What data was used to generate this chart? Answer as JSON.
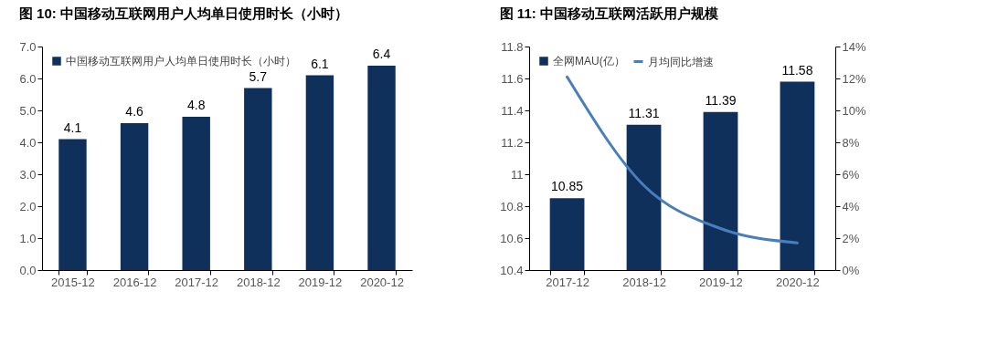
{
  "chart_data": [
    {
      "type": "bar",
      "title": "图 10: 中国移动互联网用户人均单日使用时长（小时）",
      "categories": [
        "2015-12",
        "2016-12",
        "2017-12",
        "2018-12",
        "2019-12",
        "2020-12"
      ],
      "series": [
        {
          "name": "中国移动互联网用户人均单日使用时长（小时）",
          "color": "#10305c",
          "values": [
            4.1,
            4.6,
            4.8,
            5.7,
            6.1,
            6.4
          ],
          "value_labels": [
            "4.1",
            "4.6",
            "4.8",
            "5.7",
            "6.1",
            "6.4"
          ]
        }
      ],
      "ylim": [
        0,
        7
      ],
      "yticks": [
        {
          "value": 0,
          "label": "0.0"
        },
        {
          "value": 1,
          "label": "1.0"
        },
        {
          "value": 2,
          "label": "2.0"
        },
        {
          "value": 3,
          "label": "3.0"
        },
        {
          "value": 4,
          "label": "4.0"
        },
        {
          "value": 5,
          "label": "5.0"
        },
        {
          "value": 6,
          "label": "6.0"
        },
        {
          "value": 7,
          "label": "7.0"
        }
      ],
      "legend": "top left"
    },
    {
      "type": "bar",
      "title": "图 11: 中国移动互联网活跃用户规模",
      "categories": [
        "2017-12",
        "2018-12",
        "2019-12",
        "2020-12"
      ],
      "series": [
        {
          "name": "全网MAU(亿）",
          "color": "#10305c",
          "values": [
            10.85,
            11.31,
            11.39,
            11.58
          ],
          "value_labels": [
            "10.85",
            "11.31",
            "11.39",
            "11.58"
          ]
        },
        {
          "type": "line",
          "axis": "y2",
          "name": "月均同比增速",
          "color": "#4a7ebb",
          "values": [
            12.1,
            5.3,
            2.6,
            1.7
          ]
        }
      ],
      "ylim": [
        10.4,
        11.8
      ],
      "yticks": [
        10.4,
        10.6,
        10.8,
        11,
        11.2,
        11.4,
        11.6,
        11.8
      ],
      "y2lim": [
        0,
        14
      ],
      "y2ticks": [
        {
          "value": 0,
          "label": "0%"
        },
        {
          "value": 2,
          "label": "2%"
        },
        {
          "value": 4,
          "label": "4%"
        },
        {
          "value": 6,
          "label": "6%"
        },
        {
          "value": 8,
          "label": "8%"
        },
        {
          "value": 10,
          "label": "10%"
        },
        {
          "value": 12,
          "label": "12%"
        },
        {
          "value": 14,
          "label": "14%"
        }
      ],
      "legend": "top left",
      "line_style": "solid",
      "marker": "none"
    }
  ]
}
